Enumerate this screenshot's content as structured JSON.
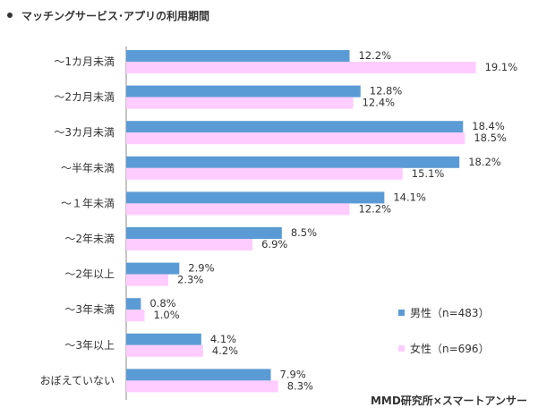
{
  "title": "マッチングサービス･アプリの利用期間",
  "source": "MMD研究所×スマートアンサー",
  "colors": {
    "male": "#5B9BD5",
    "female": "#FFCCFF"
  },
  "chart_data": {
    "type": "bar",
    "orientation": "horizontal",
    "categories": [
      "～1カ月未満",
      "～2カ月未満",
      "～3カ月未満",
      "～半年未満",
      "～１年未満",
      "～2年未満",
      "～2年以上",
      "～3年未満",
      "～3年以上",
      "おぼえていない"
    ],
    "series": [
      {
        "name": "男性（n=483）",
        "values": [
          12.2,
          12.8,
          18.4,
          18.2,
          14.1,
          8.5,
          2.9,
          0.8,
          4.1,
          7.9
        ]
      },
      {
        "name": "女性（n=696）",
        "values": [
          19.1,
          12.4,
          18.5,
          15.1,
          12.2,
          6.9,
          2.3,
          1.0,
          4.2,
          8.3
        ]
      }
    ],
    "value_format": "%",
    "legend_position": "bottom-right",
    "grid": false
  }
}
